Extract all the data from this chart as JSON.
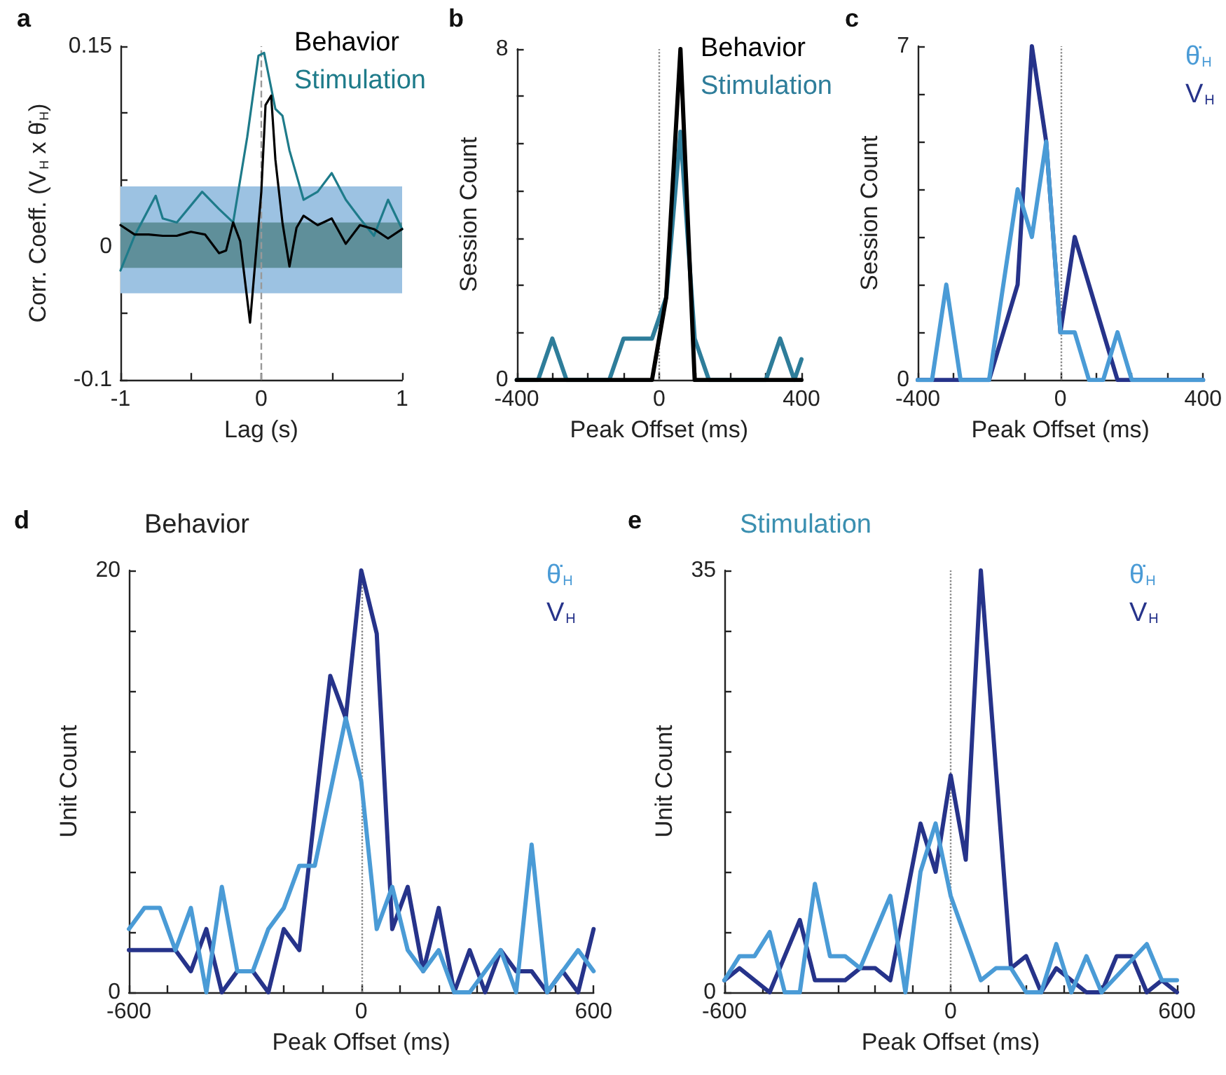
{
  "chart_data": [
    {
      "type": "line",
      "annotations": [
        "a"
      ],
      "xlabel": "Lag (s)",
      "ylabel": "Corr. Coeff. (V$_{H}$ x θ̇$_{H}$)",
      "xlim": [
        -1,
        1
      ],
      "xticks": [
        -1,
        {
          "value": -0.5,
          "label": null
        },
        0,
        {
          "value": 0.5,
          "label": null
        },
        1
      ],
      "ylim": [
        -0.1,
        0.15
      ],
      "yticks": [
        -0.1,
        {
          "value": -0.05,
          "label": null
        },
        0,
        {
          "value": 0.05,
          "label": null
        },
        {
          "value": 0.1,
          "label": null
        },
        0.15
      ],
      "legend": "top right",
      "ref_lines": [
        {
          "axis": "x",
          "value": 0,
          "color": "#999999",
          "line_style": "dashed"
        }
      ],
      "bands": [
        {
          "axis": "y",
          "from": -0.035,
          "to": 0.045,
          "color": "#9cc2e2"
        },
        {
          "axis": "y",
          "from": -0.016,
          "to": 0.018,
          "color": "#5f8f9a"
        }
      ],
      "series": [
        {
          "name": "Behavior",
          "color": "#000000",
          "x": [
            -1,
            -0.9,
            -0.8,
            -0.7,
            -0.6,
            -0.5,
            -0.4,
            -0.3,
            -0.25,
            -0.2,
            -0.15,
            -0.08,
            -0.05,
            0,
            0.03,
            0.07,
            0.1,
            0.15,
            0.2,
            0.25,
            0.3,
            0.4,
            0.5,
            0.6,
            0.7,
            0.8,
            0.9,
            1
          ],
          "values": [
            0.016,
            0.009,
            0.009,
            0.008,
            0.008,
            0.011,
            0.009,
            -0.005,
            -0.003,
            0.018,
            0.004,
            -0.057,
            -0.02,
            0.041,
            0.106,
            0.113,
            0.065,
            0.018,
            -0.015,
            0.014,
            0.023,
            0.016,
            0.021,
            0.002,
            0.016,
            0.013,
            0.006,
            0.013
          ]
        },
        {
          "name": "Stimulation",
          "color": "#1e7b8a",
          "x": [
            -1,
            -0.9,
            -0.75,
            -0.7,
            -0.6,
            -0.42,
            -0.3,
            -0.2,
            -0.1,
            -0.02,
            0.02,
            0.1,
            0.15,
            0.2,
            0.3,
            0.4,
            0.5,
            0.6,
            0.7,
            0.8,
            0.9,
            1
          ],
          "values": [
            -0.018,
            0.008,
            0.038,
            0.021,
            0.018,
            0.041,
            0.028,
            0.018,
            0.082,
            0.143,
            0.145,
            0.103,
            0.098,
            0.072,
            0.035,
            0.041,
            0.055,
            0.035,
            0.021,
            0.008,
            0.035,
            0.013
          ]
        }
      ]
    },
    {
      "type": "line",
      "annotations": [
        "b"
      ],
      "xlabel": "Peak Offset (ms)",
      "ylabel": "Session Count",
      "xlim": [
        -400,
        400
      ],
      "xticks": [
        -400,
        {
          "value": -300,
          "label": null
        },
        {
          "value": -200,
          "label": null
        },
        {
          "value": -100,
          "label": null
        },
        0,
        {
          "value": 100,
          "label": null
        },
        {
          "value": 200,
          "label": null
        },
        {
          "value": 300,
          "label": null
        },
        400
      ],
      "ylim": [
        0,
        8
      ],
      "yticks": [
        0,
        {
          "value": 1.143,
          "label": null
        },
        {
          "value": 2.286,
          "label": null
        },
        {
          "value": 3.429,
          "label": null
        },
        {
          "value": 4.571,
          "label": null
        },
        {
          "value": 5.714,
          "label": null
        },
        {
          "value": 6.857,
          "label": null
        },
        8
      ],
      "legend": "top right",
      "ref_lines": [
        {
          "axis": "x",
          "value": 0,
          "color": "#888888",
          "line_style": "dotted"
        }
      ],
      "series": [
        {
          "name": "Behavior",
          "color": "#000000",
          "x": [
            -400,
            -20,
            20,
            60,
            100,
            400
          ],
          "values": [
            0,
            0,
            2,
            8,
            0,
            0
          ]
        },
        {
          "name": "Stimulation",
          "color": "#2e7d9a",
          "x": [
            -400,
            -340,
            -300,
            -260,
            -140,
            -100,
            -20,
            20,
            60,
            100,
            140,
            300,
            340,
            380,
            400
          ],
          "values": [
            0,
            0,
            1,
            0,
            0,
            1,
            1,
            2,
            6,
            1,
            0,
            0,
            1,
            0,
            0.5
          ]
        }
      ]
    },
    {
      "type": "line",
      "annotations": [
        "c"
      ],
      "xlabel": "Peak Offset (ms)",
      "ylabel": "Session Count",
      "xlim": [
        -400,
        400
      ],
      "xticks": [
        -400,
        {
          "value": -300,
          "label": null
        },
        {
          "value": -200,
          "label": null
        },
        {
          "value": -100,
          "label": null
        },
        0,
        {
          "value": 100,
          "label": null
        },
        {
          "value": 200,
          "label": null
        },
        {
          "value": 300,
          "label": null
        },
        400
      ],
      "ylim": [
        0,
        7
      ],
      "yticks": [
        0,
        {
          "value": 1,
          "label": null
        },
        {
          "value": 2,
          "label": null
        },
        {
          "value": 3,
          "label": null
        },
        {
          "value": 4,
          "label": null
        },
        {
          "value": 5,
          "label": null
        },
        {
          "value": 6,
          "label": null
        },
        7
      ],
      "legend": "top right",
      "ref_lines": [
        {
          "axis": "x",
          "value": 0,
          "color": "#888888",
          "line_style": "dotted"
        }
      ],
      "series": [
        {
          "name": "θ̇$_{H}$",
          "color": "#4a9bd6",
          "x": [
            -400,
            -360,
            -320,
            -280,
            -200,
            -120,
            -80,
            -40,
            0,
            40,
            80,
            120,
            160,
            200,
            400
          ],
          "values": [
            0,
            0,
            2,
            0,
            0,
            4,
            3,
            5,
            1,
            1,
            0,
            0,
            1,
            0,
            0
          ]
        },
        {
          "name": "V$_{H}$",
          "color": "#26338a",
          "x": [
            -400,
            -200,
            -120,
            -80,
            -40,
            0,
            40,
            160,
            400
          ],
          "values": [
            0,
            0,
            2,
            7,
            5,
            1,
            3,
            0,
            0
          ]
        }
      ]
    },
    {
      "type": "line",
      "title": "Behavior",
      "annotations": [
        "d"
      ],
      "xlabel": "Peak Offset (ms)",
      "ylabel": "Unit Count",
      "xlim": [
        -600,
        600
      ],
      "xticks": [
        -600,
        {
          "value": -500,
          "label": null
        },
        {
          "value": -400,
          "label": null
        },
        {
          "value": -300,
          "label": null
        },
        {
          "value": -200,
          "label": null
        },
        {
          "value": -100,
          "label": null
        },
        0,
        {
          "value": 100,
          "label": null
        },
        {
          "value": 200,
          "label": null
        },
        {
          "value": 300,
          "label": null
        },
        {
          "value": 400,
          "label": null
        },
        {
          "value": 500,
          "label": null
        },
        600
      ],
      "ylim": [
        0,
        20
      ],
      "yticks": [
        0,
        {
          "value": 2.857,
          "label": null
        },
        {
          "value": 5.714,
          "label": null
        },
        {
          "value": 8.571,
          "label": null
        },
        {
          "value": 11.429,
          "label": null
        },
        {
          "value": 14.286,
          "label": null
        },
        {
          "value": 17.143,
          "label": null
        },
        20
      ],
      "legend": "top right",
      "ref_lines": [
        {
          "axis": "x",
          "value": 0,
          "color": "#888888",
          "line_style": "dotted"
        }
      ],
      "series": [
        {
          "name": "θ̇$_{H}$",
          "color": "#4a9bd6",
          "x": [
            -600,
            -560,
            -520,
            -480,
            -440,
            -400,
            -360,
            -320,
            -280,
            -240,
            -200,
            -160,
            -120,
            -40,
            0,
            40,
            80,
            120,
            160,
            200,
            240,
            280,
            360,
            400,
            440,
            480,
            560,
            600
          ],
          "values": [
            3,
            4,
            4,
            2,
            4,
            0,
            5,
            1,
            1,
            3,
            4,
            6,
            6,
            13,
            10,
            3,
            5,
            2,
            1,
            2,
            0,
            0,
            2,
            0,
            7,
            0,
            2,
            1
          ]
        },
        {
          "name": "V$_{H}$",
          "color": "#26338a",
          "x": [
            -600,
            -480,
            -440,
            -400,
            -360,
            -320,
            -280,
            -240,
            -200,
            -160,
            -80,
            -40,
            0,
            40,
            80,
            120,
            160,
            200,
            240,
            280,
            320,
            360,
            400,
            440,
            480,
            520,
            560,
            600
          ],
          "values": [
            2,
            2,
            1,
            3,
            0,
            1,
            1,
            0,
            3,
            2,
            15,
            13,
            20,
            17,
            3,
            5,
            1,
            4,
            0,
            2,
            0,
            2,
            1,
            1,
            0,
            1,
            0,
            3
          ]
        }
      ]
    },
    {
      "type": "line",
      "title": "Stimulation",
      "annotations": [
        "e"
      ],
      "xlabel": "Peak Offset (ms)",
      "ylabel": "Unit Count",
      "xlim": [
        -600,
        600
      ],
      "xticks": [
        -600,
        {
          "value": -500,
          "label": null
        },
        {
          "value": -400,
          "label": null
        },
        {
          "value": -300,
          "label": null
        },
        {
          "value": -200,
          "label": null
        },
        {
          "value": -100,
          "label": null
        },
        0,
        {
          "value": 100,
          "label": null
        },
        {
          "value": 200,
          "label": null
        },
        {
          "value": 300,
          "label": null
        },
        {
          "value": 400,
          "label": null
        },
        {
          "value": 500,
          "label": null
        },
        600
      ],
      "ylim": [
        0,
        35
      ],
      "yticks": [
        0,
        {
          "value": 5,
          "label": null
        },
        {
          "value": 10,
          "label": null
        },
        {
          "value": 15,
          "label": null
        },
        {
          "value": 20,
          "label": null
        },
        {
          "value": 25,
          "label": null
        },
        {
          "value": 30,
          "label": null
        },
        35
      ],
      "legend": "top right",
      "ref_lines": [
        {
          "axis": "x",
          "value": 0,
          "color": "#888888",
          "line_style": "dotted"
        }
      ],
      "series": [
        {
          "name": "θ̇$_{H}$",
          "color": "#4a9bd6",
          "x": [
            -600,
            -560,
            -520,
            -480,
            -440,
            -400,
            -360,
            -320,
            -280,
            -240,
            -200,
            -160,
            -120,
            -80,
            -40,
            0,
            80,
            120,
            160,
            200,
            240,
            280,
            320,
            360,
            400,
            520,
            560,
            600
          ],
          "values": [
            1,
            3,
            3,
            5,
            0,
            0,
            9,
            3,
            3,
            2,
            5,
            8,
            0,
            10,
            14,
            8,
            1,
            2,
            2,
            0,
            0,
            4,
            0,
            3,
            0,
            4,
            1,
            1
          ]
        },
        {
          "name": "V$_{H}$",
          "color": "#26338a",
          "x": [
            -600,
            -560,
            -480,
            -440,
            -400,
            -360,
            -280,
            -240,
            -200,
            -160,
            -80,
            -40,
            0,
            40,
            80,
            160,
            200,
            240,
            280,
            320,
            360,
            400,
            440,
            480,
            520,
            560,
            600
          ],
          "values": [
            1,
            2,
            0,
            3,
            6,
            1,
            1,
            2,
            2,
            1,
            14,
            10,
            18,
            11,
            35,
            2,
            3,
            0,
            2,
            1,
            0,
            0,
            3,
            3,
            0,
            1,
            0
          ]
        }
      ]
    }
  ]
}
